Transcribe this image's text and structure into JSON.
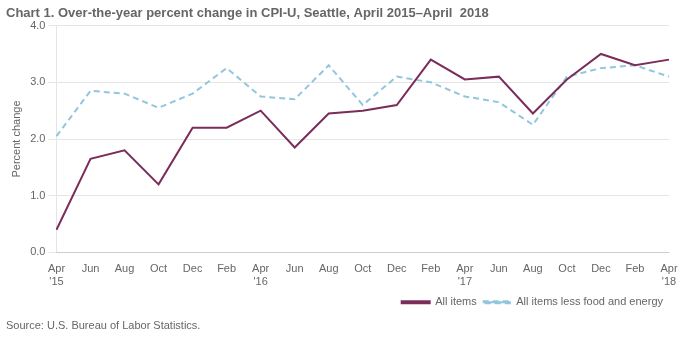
{
  "chart_data": {
    "type": "line",
    "title": "Chart 1. Over-the-year percent change in CPI-U, Seattle, April 2015–April  2018",
    "ylabel": "Percent change",
    "source": "Source: U.S. Bureau of Labor Statistics.",
    "categories": [
      "Apr\n'15",
      "Jun",
      "Aug",
      "Oct",
      "Dec",
      "Feb",
      "Apr\n'16",
      "Jun",
      "Aug",
      "Oct",
      "Dec",
      "Feb",
      "Apr\n'17",
      "Jun",
      "Aug",
      "Oct",
      "Dec",
      "Feb",
      "Apr\n'18"
    ],
    "series": [
      {
        "name": "All items",
        "color": "#7B2D5A",
        "line_style": "solid",
        "values": [
          0.4,
          1.65,
          1.8,
          1.2,
          2.2,
          2.2,
          2.5,
          1.85,
          2.45,
          2.5,
          2.6,
          3.4,
          3.05,
          3.1,
          2.45,
          3.05,
          3.5,
          3.3,
          3.4
        ]
      },
      {
        "name": "All items less food and energy",
        "color": "#92C5DE",
        "line_style": "dashed",
        "values": [
          2.05,
          2.85,
          2.8,
          2.55,
          2.8,
          3.25,
          2.75,
          2.7,
          3.3,
          2.6,
          3.1,
          3.0,
          2.75,
          2.65,
          2.25,
          3.1,
          3.25,
          3.3,
          3.1
        ]
      }
    ],
    "ylim": [
      0.0,
      4.0
    ],
    "yticks": [
      {
        "value": 0,
        "label": "0.0"
      },
      {
        "value": 1,
        "label": "1.0"
      },
      {
        "value": 2,
        "label": "2.0"
      },
      {
        "value": 3,
        "label": "3.0"
      },
      {
        "value": 4,
        "label": "4.0"
      }
    ],
    "grid": "y",
    "legend": "lower right"
  }
}
